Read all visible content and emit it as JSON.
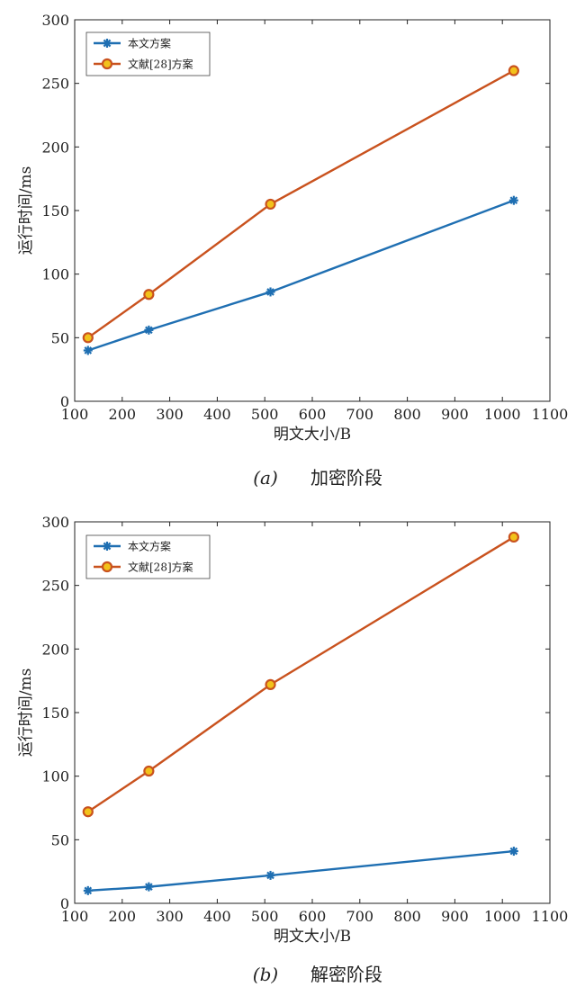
{
  "chart_data": [
    {
      "type": "line",
      "xlabel": "明文大小/B",
      "ylabel": "运行时间/ms",
      "xlim": [
        100,
        1100
      ],
      "ylim": [
        0,
        300
      ],
      "xticks": [
        "100",
        "200",
        "300",
        "400",
        "500",
        "600",
        "700",
        "800",
        "900",
        "1000",
        "1100"
      ],
      "yticks": [
        "0",
        "50",
        "100",
        "150",
        "200",
        "250",
        "300"
      ],
      "x": [
        128,
        256,
        512,
        1024
      ],
      "series": [
        {
          "name": "本文方案",
          "values": [
            40,
            56,
            86,
            158
          ],
          "color": "#1f6fb2",
          "marker": "asterisk"
        },
        {
          "name": "文献[28]方案",
          "values": [
            50,
            84,
            155,
            260
          ],
          "color": "#c9521e",
          "marker": "circle"
        }
      ],
      "legend": "top-left",
      "caption_tag": "(a)",
      "caption_text": "加密阶段"
    },
    {
      "type": "line",
      "xlabel": "明文大小/B",
      "ylabel": "运行时间/ms",
      "xlim": [
        100,
        1100
      ],
      "ylim": [
        0,
        300
      ],
      "xticks": [
        "100",
        "200",
        "300",
        "400",
        "500",
        "600",
        "700",
        "800",
        "900",
        "1000",
        "1100"
      ],
      "yticks": [
        "0",
        "50",
        "100",
        "150",
        "200",
        "250",
        "300"
      ],
      "x": [
        128,
        256,
        512,
        1024
      ],
      "series": [
        {
          "name": "本文方案",
          "values": [
            10,
            13,
            22,
            41
          ],
          "color": "#1f6fb2",
          "marker": "asterisk"
        },
        {
          "name": "文献[28]方案",
          "values": [
            72,
            104,
            172,
            288
          ],
          "color": "#c9521e",
          "marker": "circle"
        }
      ],
      "legend": "top-left",
      "caption_tag": "(b)",
      "caption_text": "解密阶段"
    }
  ]
}
